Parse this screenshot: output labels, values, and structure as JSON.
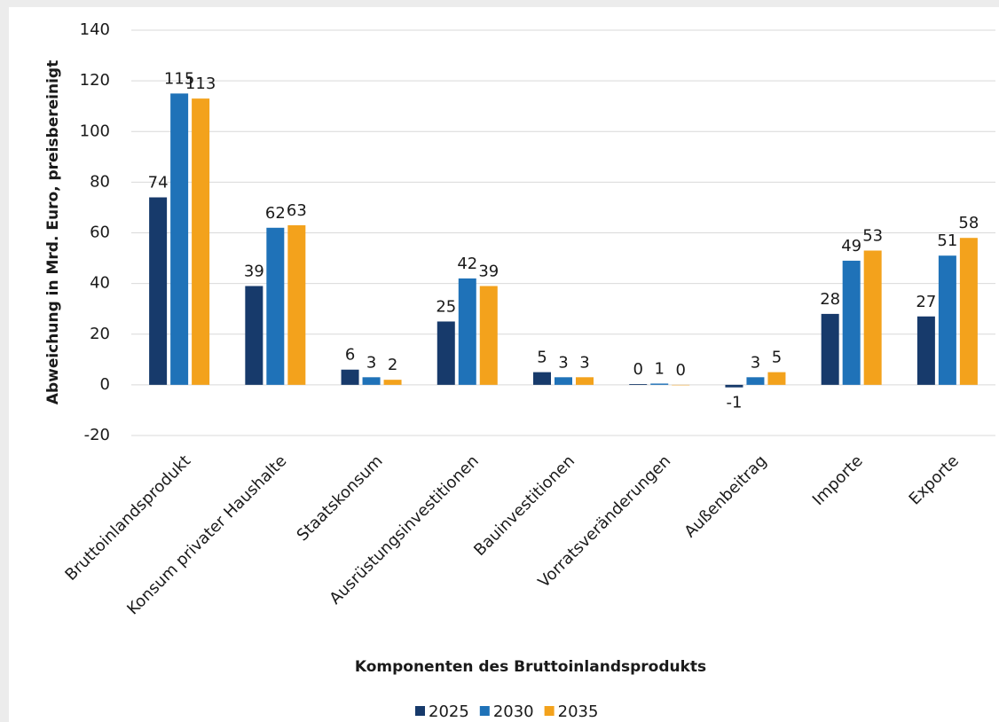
{
  "chart_data": {
    "type": "bar",
    "categories": [
      "Bruttoinlandsprodukt",
      "Konsum privater Haushalte",
      "Staatskonsum",
      "Ausrüstungsinvestitionen",
      "Bauinvestitionen",
      "Vorratsveränderungen",
      "Außenbeitrag",
      "Importe",
      "Exporte"
    ],
    "series": [
      {
        "name": "2025",
        "color": "#173a6b",
        "values": [
          74,
          39,
          6,
          25,
          5,
          0.3,
          -1,
          28,
          27
        ],
        "value_labels": [
          "74",
          "39",
          "6",
          "25",
          "5",
          "0",
          "-1",
          "28",
          "27"
        ]
      },
      {
        "name": "2030",
        "color": "#1f72b8",
        "values": [
          115,
          62,
          3,
          42,
          3,
          0.5,
          3,
          49,
          51
        ],
        "value_labels": [
          "115",
          "62",
          "3",
          "42",
          "3",
          "1",
          "3",
          "49",
          "51"
        ]
      },
      {
        "name": "2035",
        "color": "#f3a21c",
        "values": [
          113,
          63,
          2,
          39,
          3,
          0,
          5,
          53,
          58
        ],
        "value_labels": [
          "113",
          "63",
          "2",
          "39",
          "3",
          "0",
          "5",
          "53",
          "58"
        ]
      }
    ],
    "ylim": [
      -20,
      140
    ],
    "yticks": [
      -20,
      0,
      20,
      40,
      60,
      80,
      100,
      120,
      140
    ],
    "grid": true,
    "ylabel": "Abweichung in Mrd. Euro, preisbereinigt",
    "xlabel": "Komponenten des Bruttoinlandsprodukts",
    "legend": "bottom"
  }
}
